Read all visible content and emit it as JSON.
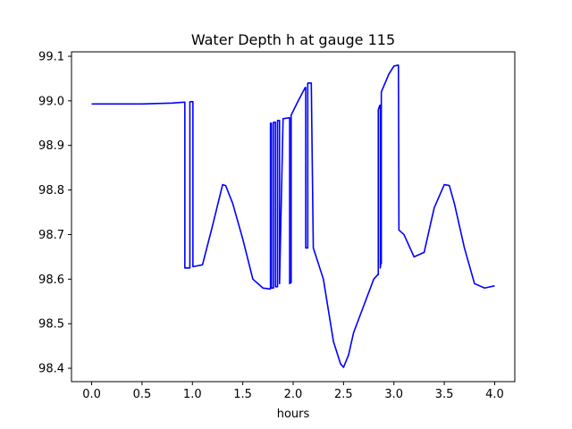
{
  "chart_data": {
    "type": "line",
    "title": "Water Depth h at gauge 115",
    "xlabel": "hours",
    "ylabel": "",
    "xlim": [
      -0.2,
      4.2
    ],
    "ylim": [
      98.37,
      99.11
    ],
    "grid": false,
    "x_ticks": [
      0.0,
      0.5,
      1.0,
      1.5,
      2.0,
      2.5,
      3.0,
      3.5,
      4.0
    ],
    "x_tick_labels": [
      "0.0",
      "0.5",
      "1.0",
      "1.5",
      "2.0",
      "2.5",
      "3.0",
      "3.5",
      "4.0"
    ],
    "y_ticks": [
      98.4,
      98.5,
      98.6,
      98.7,
      98.8,
      98.9,
      99.0,
      99.1
    ],
    "y_tick_labels": [
      "98.4",
      "98.5",
      "98.6",
      "98.7",
      "98.8",
      "98.9",
      "99.0",
      "99.1"
    ],
    "series": [
      {
        "color": "#0000ff",
        "x": [
          0.0,
          0.5,
          0.8,
          0.92,
          0.925,
          0.925,
          0.97,
          0.975,
          0.975,
          1.0,
          1.005,
          1.005,
          1.05,
          1.1,
          1.2,
          1.3,
          1.33,
          1.4,
          1.5,
          1.6,
          1.7,
          1.77,
          1.775,
          1.775,
          1.78,
          1.785,
          1.785,
          1.8,
          1.805,
          1.805,
          1.82,
          1.825,
          1.825,
          1.84,
          1.845,
          1.845,
          1.86,
          1.865,
          1.865,
          1.9,
          1.96,
          1.965,
          1.965,
          1.975,
          1.98,
          1.98,
          2.05,
          2.12,
          2.125,
          2.125,
          2.14,
          2.145,
          2.145,
          2.18,
          2.2,
          2.3,
          2.4,
          2.47,
          2.5,
          2.55,
          2.6,
          2.7,
          2.8,
          2.84,
          2.845,
          2.845,
          2.86,
          2.865,
          2.865,
          2.87,
          2.875,
          2.875,
          2.95,
          3.0,
          3.04,
          3.045,
          3.05,
          3.1,
          3.2,
          3.3,
          3.4,
          3.5,
          3.55,
          3.6,
          3.7,
          3.8,
          3.9,
          4.0
        ],
        "y": [
          98.993,
          98.993,
          98.995,
          98.997,
          98.997,
          98.625,
          98.625,
          98.625,
          98.998,
          98.998,
          98.998,
          98.628,
          98.63,
          98.632,
          98.72,
          98.812,
          98.81,
          98.77,
          98.69,
          98.6,
          98.58,
          98.578,
          98.578,
          98.95,
          98.95,
          98.95,
          98.58,
          98.58,
          98.58,
          98.952,
          98.952,
          98.952,
          98.583,
          98.583,
          98.583,
          98.956,
          98.956,
          98.956,
          98.59,
          98.96,
          98.962,
          98.962,
          98.59,
          98.592,
          98.592,
          98.968,
          99.0,
          99.03,
          99.03,
          98.67,
          98.67,
          98.67,
          99.04,
          99.04,
          98.67,
          98.6,
          98.46,
          98.41,
          98.402,
          98.43,
          98.48,
          98.54,
          98.6,
          98.61,
          98.61,
          98.98,
          98.99,
          98.99,
          98.625,
          98.635,
          98.635,
          99.02,
          99.06,
          99.078,
          99.08,
          99.08,
          98.71,
          98.7,
          98.65,
          98.66,
          98.76,
          98.812,
          98.81,
          98.77,
          98.67,
          98.59,
          98.58,
          98.585
        ]
      }
    ]
  }
}
